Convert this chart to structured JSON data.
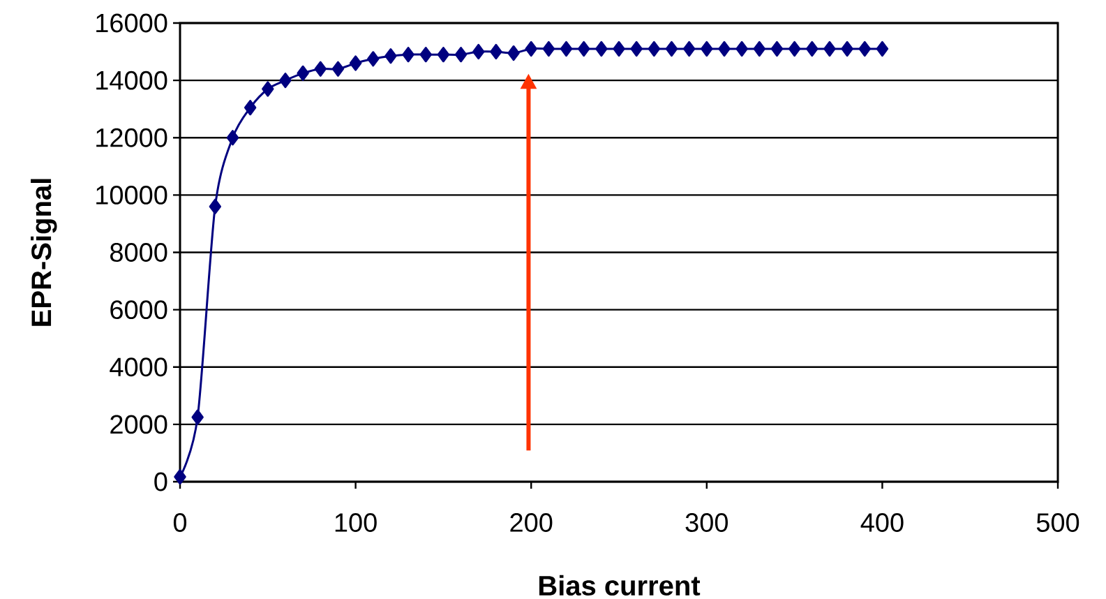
{
  "chart_data": {
    "type": "line",
    "xlabel": "Bias current",
    "ylabel": "EPR-Signal",
    "x": [
      0,
      10,
      20,
      30,
      40,
      50,
      60,
      70,
      80,
      90,
      100,
      110,
      120,
      130,
      140,
      150,
      160,
      170,
      180,
      190,
      200,
      210,
      220,
      230,
      240,
      250,
      260,
      270,
      280,
      290,
      300,
      310,
      320,
      330,
      340,
      350,
      360,
      370,
      380,
      390,
      400
    ],
    "series": [
      {
        "color": "#000080",
        "values": [
          170,
          2250,
          9600,
          12000,
          13050,
          13700,
          14000,
          14250,
          14400,
          14400,
          14600,
          14750,
          14850,
          14900,
          14900,
          14900,
          14900,
          15000,
          15000,
          14950,
          15100,
          15100,
          15100,
          15100,
          15100,
          15100,
          15100,
          15100,
          15100,
          15100,
          15100,
          15100,
          15100,
          15100,
          15100,
          15100,
          15100,
          15100,
          15100,
          15100,
          15100
        ]
      }
    ],
    "xlim": [
      0,
      500
    ],
    "ylim": [
      0,
      16000
    ],
    "xticks": [
      0,
      100,
      200,
      300,
      400,
      500
    ],
    "yticks": [
      0,
      2000,
      4000,
      6000,
      8000,
      10000,
      12000,
      14000,
      16000
    ],
    "grid": "y",
    "marker": "diamond",
    "line_style": "solid"
  }
}
